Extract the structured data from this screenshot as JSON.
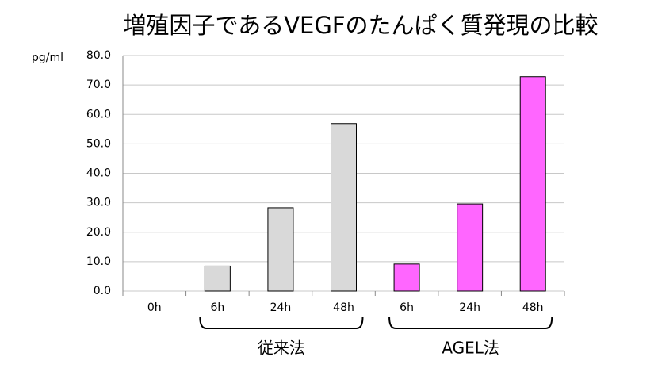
{
  "chart_data": {
    "type": "bar",
    "title": "増殖因子であるVEGFのたんぱく質発現の比較",
    "y_label": "pg/ml",
    "categories": [
      "0h",
      "6h",
      "24h",
      "48h",
      "6h",
      "24h",
      "48h"
    ],
    "series": [
      {
        "name": "従来法",
        "color": "#d9d9d9",
        "values": [
          null,
          8.5,
          28.3,
          56.9,
          null,
          null,
          null
        ]
      },
      {
        "name": "AGEL法",
        "color": "#ff66ff",
        "values": [
          null,
          null,
          null,
          null,
          9.2,
          29.6,
          72.8
        ]
      }
    ],
    "ylim": [
      0,
      80
    ],
    "yticks": [
      {
        "value": 0,
        "label": "0.0"
      },
      {
        "value": 10,
        "label": "10.0"
      },
      {
        "value": 20,
        "label": "20.0"
      },
      {
        "value": 30,
        "label": "30.0"
      },
      {
        "value": 40,
        "label": "40.0"
      },
      {
        "value": 50,
        "label": "50.0"
      },
      {
        "value": 60,
        "label": "60.0"
      },
      {
        "value": 70,
        "label": "70.0"
      },
      {
        "value": 80,
        "label": "80.0"
      }
    ],
    "grid": true
  }
}
